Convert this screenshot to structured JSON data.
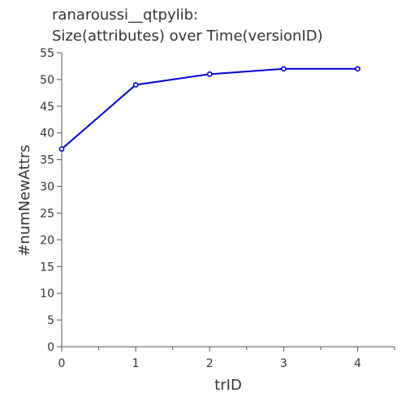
{
  "chart_data": {
    "type": "line",
    "title_lines": [
      "ranaroussi__qtpylib:",
      "Size(attributes) over Time(versionID)"
    ],
    "xlabel": "trID",
    "ylabel": "#numNewAttrs",
    "x": [
      0,
      1,
      2,
      3,
      4
    ],
    "series": [
      {
        "values": [
          37,
          49,
          51,
          52,
          52
        ]
      }
    ],
    "xlim": [
      0,
      4.5
    ],
    "ylim": [
      0,
      55
    ],
    "xticks": [
      0,
      1,
      2,
      3,
      4
    ],
    "yticks": [
      0,
      5,
      10,
      15,
      20,
      25,
      30,
      35,
      40,
      45,
      50,
      55
    ],
    "grid": false,
    "line_color": "#0000dd"
  }
}
